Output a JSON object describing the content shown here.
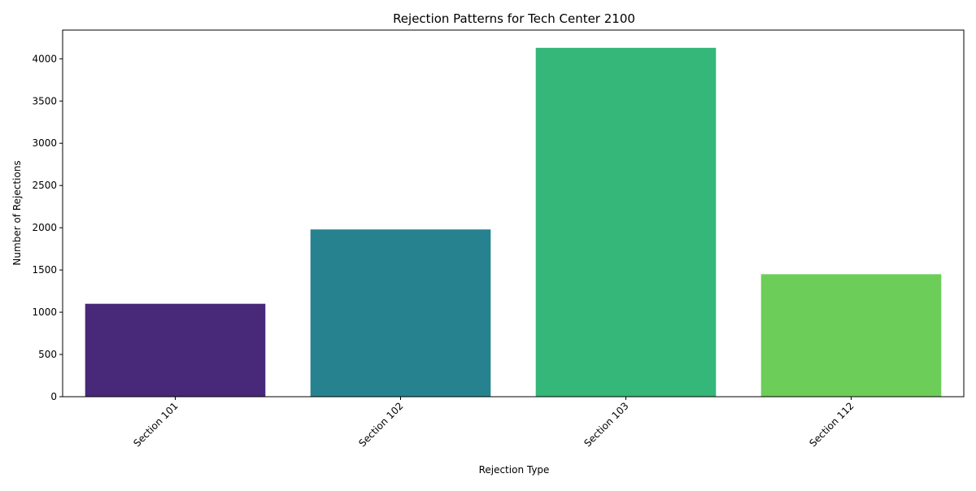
{
  "chart_data": {
    "type": "bar",
    "title": "Rejection Patterns for Tech Center 2100",
    "xlabel": "Rejection Type",
    "ylabel": "Number of Rejections",
    "categories": [
      "Section 101",
      "Section 102",
      "Section 103",
      "Section 112"
    ],
    "values": [
      1100,
      1980,
      4130,
      1450
    ],
    "ylim": [
      0,
      4340
    ],
    "yticks": [
      0,
      500,
      1000,
      1500,
      2000,
      2500,
      3000,
      3500,
      4000
    ],
    "colors": [
      "#482878",
      "#26828e",
      "#35b779",
      "#6cce59"
    ],
    "grid": false,
    "legend": "none",
    "xtick_rotation": 45
  }
}
